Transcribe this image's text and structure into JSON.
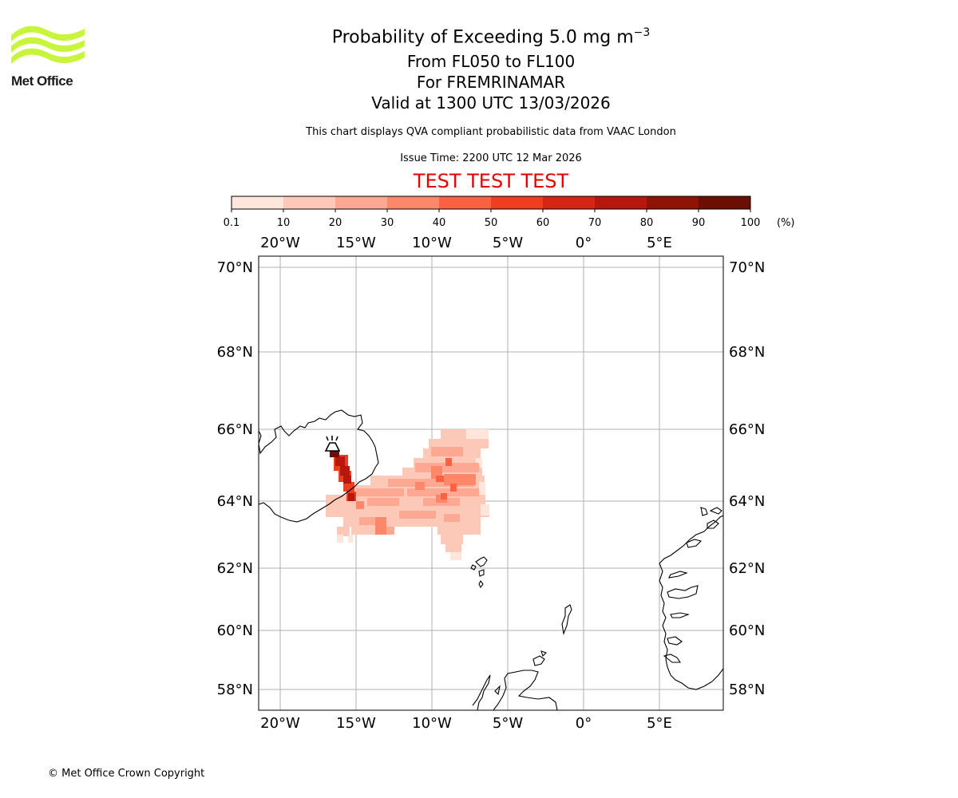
{
  "logo": {
    "name": "Met Office",
    "color": "#c8f53c"
  },
  "header": {
    "title_main": "Probability of Exceeding 5.0 mg m",
    "title_exp": "−3",
    "line2": "From FL050 to FL100",
    "line3": "For FREMRINAMAR",
    "line4": "Valid at 1300 UTC 13/03/2026",
    "note": "This chart displays QVA compliant probabilistic data from VAAC London",
    "issue": "Issue Time: 2200 UTC 12 Mar 2026",
    "test_label": "TEST TEST TEST"
  },
  "colorbar": {
    "ticks": [
      "0.1",
      "10",
      "20",
      "30",
      "40",
      "50",
      "60",
      "70",
      "80",
      "90",
      "100"
    ],
    "unit": "(%)",
    "colors": [
      "#fee6dc",
      "#fcc8b8",
      "#fca892",
      "#fc8769",
      "#fa6142",
      "#f03c1f",
      "#d62514",
      "#b8170d",
      "#911206",
      "#6b0e03"
    ]
  },
  "map": {
    "lon_labels": [
      "20°W",
      "15°W",
      "10°W",
      "5°W",
      "0°",
      "5°E"
    ],
    "lat_labels": [
      "70°N",
      "68°N",
      "66°N",
      "64°N",
      "62°N",
      "60°N",
      "58°N"
    ],
    "volcano_symbol": "volcano-icon"
  },
  "footer": {
    "copyright": "© Met Office Crown Copyright"
  }
}
